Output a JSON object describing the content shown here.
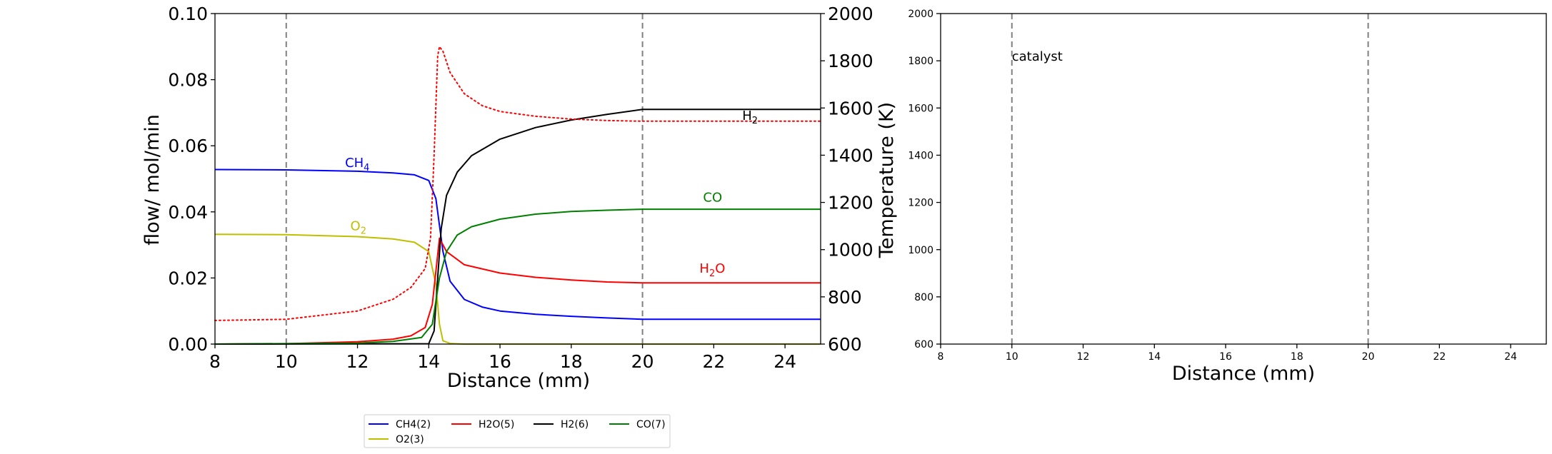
{
  "chart_data": [
    {
      "type": "line",
      "xlabel": "Distance (mm)",
      "ylabel": "flow/ mol/min",
      "y2label": "Temperature (K)",
      "xlim": [
        8,
        25
      ],
      "ylim": [
        0,
        0.1
      ],
      "y2lim": [
        600,
        2000
      ],
      "xticks": [
        "8",
        "10",
        "12",
        "14",
        "16",
        "18",
        "20",
        "22",
        "24"
      ],
      "yticks": [
        "0.00",
        "0.02",
        "0.04",
        "0.06",
        "0.08",
        "0.10"
      ],
      "y2ticks": [
        "600",
        "800",
        "1000",
        "1200",
        "1400",
        "1600",
        "1800",
        "2000"
      ],
      "grid": false,
      "vlines": [
        10,
        20
      ],
      "series": [
        {
          "name": "CH4(2)",
          "color": "#0000ff",
          "style": "solid",
          "x": [
            8,
            10,
            12,
            13,
            13.6,
            14,
            14.2,
            14.4,
            14.6,
            15,
            15.5,
            16,
            17,
            18,
            19,
            20,
            25
          ],
          "y": [
            0.0528,
            0.0527,
            0.0523,
            0.0518,
            0.0512,
            0.0495,
            0.044,
            0.028,
            0.019,
            0.0135,
            0.0112,
            0.01,
            0.009,
            0.0084,
            0.0079,
            0.0075,
            0.0075
          ]
        },
        {
          "name": "O2(3)",
          "color": "#bfbf00",
          "style": "solid",
          "x": [
            8,
            10,
            12,
            13,
            13.6,
            14,
            14.2,
            14.3,
            14.4,
            14.6,
            15,
            25
          ],
          "y": [
            0.0332,
            0.0331,
            0.0325,
            0.0318,
            0.0308,
            0.028,
            0.018,
            0.006,
            0.001,
            0.0002,
            0,
            0
          ]
        },
        {
          "name": "H2O(5)",
          "color": "#ff0000",
          "style": "solid",
          "x": [
            8,
            10,
            12,
            13,
            13.5,
            13.9,
            14.1,
            14.3,
            14.5,
            15,
            16,
            17,
            18,
            19,
            20,
            25
          ],
          "y": [
            0,
            0.0001,
            0.0007,
            0.0015,
            0.0025,
            0.005,
            0.012,
            0.032,
            0.028,
            0.024,
            0.0215,
            0.0202,
            0.0194,
            0.0188,
            0.0185,
            0.0185
          ]
        },
        {
          "name": "H2(6)",
          "color": "#000000",
          "style": "solid",
          "x": [
            8,
            14,
            14.15,
            14.25,
            14.35,
            14.5,
            14.8,
            15.2,
            16,
            17,
            18,
            19,
            20,
            25
          ],
          "y": [
            0,
            0.0001,
            0.004,
            0.02,
            0.035,
            0.045,
            0.052,
            0.057,
            0.062,
            0.0655,
            0.0678,
            0.0695,
            0.071,
            0.071
          ]
        },
        {
          "name": "CO(7)",
          "color": "#008000",
          "style": "solid",
          "x": [
            8,
            12,
            13,
            13.8,
            14.1,
            14.3,
            14.5,
            14.8,
            15.2,
            16,
            17,
            18,
            19,
            20,
            25
          ],
          "y": [
            0,
            0.0003,
            0.0008,
            0.002,
            0.006,
            0.02,
            0.028,
            0.033,
            0.0355,
            0.0378,
            0.0393,
            0.0401,
            0.0405,
            0.0408,
            0.0408
          ]
        },
        {
          "name": "",
          "axis": "right",
          "color": "#ff0000",
          "style": "dotted",
          "x": [
            8,
            10,
            12,
            13,
            13.5,
            13.9,
            14.05,
            14.15,
            14.25,
            14.3,
            14.4,
            14.6,
            15,
            15.5,
            16,
            17,
            18,
            19,
            20,
            25
          ],
          "y": [
            700,
            705,
            740,
            790,
            840,
            920,
            1050,
            1400,
            1820,
            1860,
            1840,
            1750,
            1660,
            1610,
            1585,
            1565,
            1553,
            1547,
            1544,
            1544
          ]
        }
      ],
      "annotations": [
        {
          "base": "CH",
          "sub": "4",
          "x": 11.65,
          "y": 0.0536,
          "color": "#0000ff"
        },
        {
          "base": "O",
          "sub": "2",
          "x": 11.8,
          "y": 0.0345,
          "color": "#bfbf00"
        },
        {
          "base": "H",
          "sub": "2",
          "x": 22.8,
          "y": 0.0678,
          "color": "#000000"
        },
        {
          "base": "CO",
          "sub": "",
          "x": 21.7,
          "y": 0.0431,
          "color": "#008000"
        },
        {
          "base": "H",
          "sub": "2",
          "tail": "O",
          "x": 21.6,
          "y": 0.0216,
          "color": "#ff0000"
        }
      ]
    },
    {
      "type": "line",
      "xlabel": "Distance (mm)",
      "ylabel": "",
      "xlim": [
        8,
        25
      ],
      "ylim": [
        600,
        2000
      ],
      "xticks": [
        "8",
        "10",
        "12",
        "14",
        "16",
        "18",
        "20",
        "22",
        "24"
      ],
      "yticks": [
        "600",
        "800",
        "1000",
        "1200",
        "1400",
        "1600",
        "1800",
        "2000"
      ],
      "grid": false,
      "vlines": [
        10,
        20
      ],
      "series": [],
      "annotations": [
        {
          "base": "catalyst",
          "sub": "",
          "x": 10,
          "y": 1800,
          "color": "#000000"
        }
      ]
    }
  ],
  "legend": {
    "placement": "below-left-chart",
    "entries": [
      {
        "label": "CH4(2)",
        "color": "#0000ff"
      },
      {
        "label": "H2O(5)",
        "color": "#ff0000"
      },
      {
        "label": "H2(6)",
        "color": "#000000"
      },
      {
        "label": "CO(7)",
        "color": "#008000"
      },
      {
        "label": "O2(3)",
        "color": "#bfbf00"
      }
    ]
  }
}
